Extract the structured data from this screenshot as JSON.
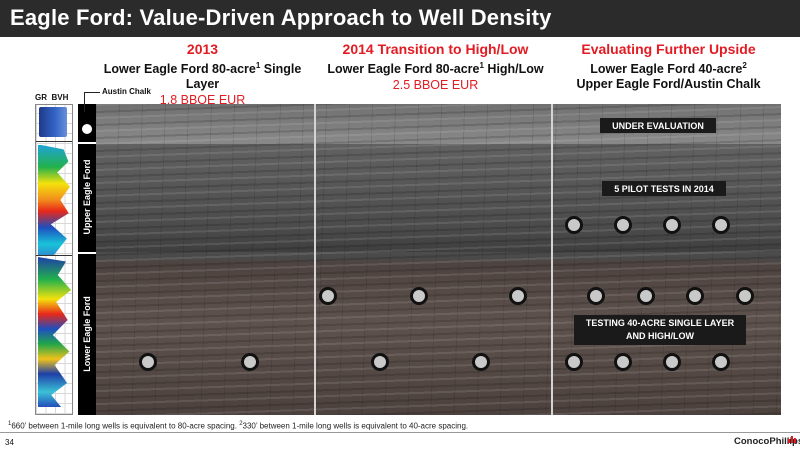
{
  "title": "Eagle Ford: Value-Driven Approach to Well Density",
  "columns": [
    {
      "year": "2013",
      "line1": "Lower Eagle Ford 80-acre",
      "sup": "1",
      "line1_end": " Single Layer",
      "eur": "1.8 BBOE EUR"
    },
    {
      "year": "2014 Transition to High/Low",
      "line1": "Lower Eagle Ford 80-acre",
      "sup": "1",
      "line1_end": " High/Low",
      "eur": "2.5 BBOE EUR"
    },
    {
      "year": "Evaluating Further Upside",
      "line1": "Lower Eagle Ford 40-acre",
      "sup": "2",
      "line2": "Upper Eagle Ford/Austin Chalk"
    }
  ],
  "log_labels": {
    "gr": "GR",
    "bvh": "BVH"
  },
  "zones": {
    "austin_chalk": "Austin Chalk",
    "upper": "Upper Eagle Ford",
    "lower": "Lower Eagle Ford"
  },
  "boxes": {
    "under_eval": "UNDER EVALUATION",
    "pilot": "5 PILOT TESTS IN 2014",
    "testing_line1": "TESTING 40-ACRE SINGLE LAYER",
    "testing_line2": "AND HIGH/LOW"
  },
  "footnote": {
    "sup1": "1",
    "text1": "660’ between 1-mile long wells is equivalent to 80-acre spacing.  ",
    "sup2": "2",
    "text2": "330’ between 1-mile long wells is equivalent to 40-acre spacing."
  },
  "page_number": "34",
  "logo": "ConocoPhillips"
}
